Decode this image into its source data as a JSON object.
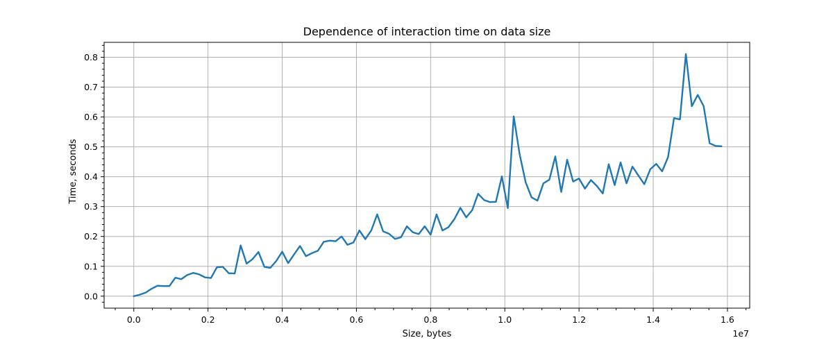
{
  "chart_data": {
    "type": "line",
    "title": "Dependence of interaction time on data size",
    "xlabel": "Size, bytes",
    "ylabel": "Time, seconds",
    "x_offset_label": "1e7",
    "xlim": [
      -0.08,
      1.66
    ],
    "ylim": [
      -0.04,
      0.85
    ],
    "x_ticks": [
      0.0,
      0.2,
      0.4,
      0.6,
      0.8,
      1.0,
      1.2,
      1.4,
      1.6
    ],
    "x_tick_labels": [
      "0.0",
      "0.2",
      "0.4",
      "0.6",
      "0.8",
      "1.0",
      "1.2",
      "1.4",
      "1.6"
    ],
    "y_ticks": [
      0.0,
      0.1,
      0.2,
      0.3,
      0.4,
      0.5,
      0.6,
      0.7,
      0.8
    ],
    "y_tick_labels": [
      "0.0",
      "0.1",
      "0.2",
      "0.3",
      "0.4",
      "0.5",
      "0.6",
      "0.7",
      "0.8"
    ],
    "grid": true,
    "color": "#1f77b4",
    "series": [
      {
        "x": [
          0.0,
          0.016,
          0.032,
          0.048,
          0.064,
          0.08,
          0.096,
          0.112,
          0.128,
          0.144,
          0.16,
          0.176,
          0.192,
          0.208,
          0.224,
          0.24,
          0.256,
          0.272,
          0.288,
          0.304,
          0.32,
          0.336,
          0.352,
          0.368,
          0.384,
          0.4,
          0.416,
          0.432,
          0.448,
          0.464,
          0.48,
          0.496,
          0.512,
          0.528,
          0.544,
          0.56,
          0.576,
          0.592,
          0.608,
          0.624,
          0.64,
          0.656,
          0.672,
          0.688,
          0.704,
          0.72,
          0.736,
          0.752,
          0.768,
          0.784,
          0.8,
          0.816,
          0.832,
          0.848,
          0.864,
          0.88,
          0.896,
          0.912,
          0.928,
          0.944,
          0.96,
          0.976,
          0.992,
          1.008,
          1.024,
          1.04,
          1.056,
          1.072,
          1.088,
          1.104,
          1.12,
          1.136,
          1.152,
          1.168,
          1.184,
          1.2,
          1.216,
          1.232,
          1.248,
          1.264,
          1.28,
          1.296,
          1.312,
          1.328,
          1.344,
          1.36,
          1.376,
          1.392,
          1.408,
          1.424,
          1.44,
          1.456,
          1.472,
          1.488,
          1.504,
          1.52,
          1.536,
          1.552,
          1.568,
          1.584
        ],
        "y": [
          0.0,
          0.005,
          0.012,
          0.025,
          0.035,
          0.034,
          0.034,
          0.062,
          0.057,
          0.071,
          0.078,
          0.073,
          0.063,
          0.061,
          0.097,
          0.098,
          0.077,
          0.076,
          0.17,
          0.109,
          0.124,
          0.148,
          0.098,
          0.095,
          0.118,
          0.149,
          0.111,
          0.14,
          0.168,
          0.134,
          0.144,
          0.152,
          0.182,
          0.186,
          0.184,
          0.2,
          0.172,
          0.18,
          0.22,
          0.191,
          0.22,
          0.274,
          0.217,
          0.209,
          0.192,
          0.197,
          0.234,
          0.214,
          0.208,
          0.234,
          0.206,
          0.274,
          0.22,
          0.231,
          0.258,
          0.296,
          0.264,
          0.288,
          0.343,
          0.322,
          0.315,
          0.316,
          0.401,
          0.295,
          0.602,
          0.475,
          0.382,
          0.331,
          0.32,
          0.378,
          0.39,
          0.468,
          0.349,
          0.457,
          0.384,
          0.394,
          0.36,
          0.389,
          0.369,
          0.344,
          0.442,
          0.372,
          0.448,
          0.378,
          0.434,
          0.404,
          0.375,
          0.425,
          0.443,
          0.418,
          0.466,
          0.596,
          0.592,
          0.811,
          0.636,
          0.674,
          0.636,
          0.512,
          0.503,
          0.502
        ]
      }
    ]
  }
}
